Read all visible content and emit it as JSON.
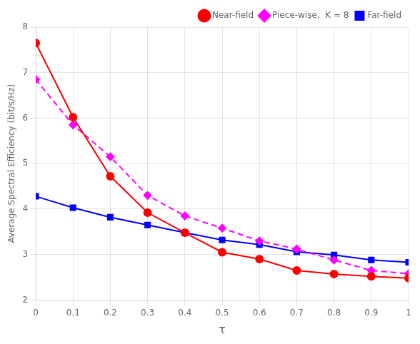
{
  "chart_data": {
    "type": "line",
    "x": [
      0.0,
      0.1,
      0.2,
      0.3,
      0.4,
      0.5,
      0.6,
      0.7,
      0.8,
      0.9,
      1.0
    ],
    "series": [
      {
        "name": "Near-field",
        "color": "#FF0000",
        "marker": "circle",
        "line_style": "solid",
        "values": [
          7.65,
          6.02,
          4.72,
          3.92,
          3.48,
          3.05,
          2.9,
          2.65,
          2.57,
          2.52,
          2.48
        ]
      },
      {
        "name": "Piece-wise,  K = 8",
        "color": "#FF00FF",
        "marker": "diamond",
        "line_style": "dashed",
        "values": [
          6.85,
          5.85,
          5.15,
          4.3,
          3.85,
          3.58,
          3.3,
          3.12,
          2.88,
          2.65,
          2.58
        ]
      },
      {
        "name": "Far-field",
        "color": "#0000FF",
        "marker": "square",
        "line_style": "solid",
        "values": [
          4.28,
          4.03,
          3.82,
          3.65,
          3.48,
          3.32,
          3.22,
          3.06,
          2.99,
          2.88,
          2.83
        ]
      }
    ],
    "xlabel": "τ",
    "ylabel": "Average Spectral Efficiency (bit/s/Hz)",
    "xlim": [
      0.0,
      1.0
    ],
    "ylim": [
      2.0,
      8.0
    ],
    "xticks": [
      0,
      0.1,
      0.2,
      0.3,
      0.4,
      0.5,
      0.6,
      0.7,
      0.8,
      0.9,
      1
    ],
    "yticks": [
      2,
      3,
      4,
      5,
      6,
      7,
      8
    ],
    "grid": true,
    "legend": "upper right"
  }
}
